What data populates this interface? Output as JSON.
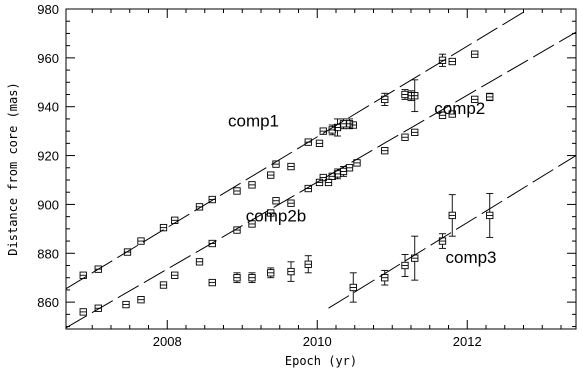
{
  "chart_data": {
    "type": "scatter",
    "title": "",
    "xlabel": "Epoch (yr)",
    "ylabel": "Distance from core (mas)",
    "xlim": [
      2006.65,
      2013.45
    ],
    "ylim": [
      849,
      980
    ],
    "x_ticks_major": [
      2008,
      2010,
      2012
    ],
    "y_ticks_major": [
      860,
      880,
      900,
      920,
      940,
      960,
      980
    ],
    "x_tick_labels": [
      "2008",
      "2010",
      "2012"
    ],
    "y_tick_labels": [
      "860",
      "880",
      "900",
      "920",
      "940",
      "960",
      "980"
    ],
    "grid": false,
    "legend": "none",
    "annotations": [
      {
        "text": "comp1",
        "x": 2009.15,
        "y": 932
      },
      {
        "text": "comp2",
        "x": 2011.9,
        "y": 937
      },
      {
        "text": "comp2b",
        "x": 2009.45,
        "y": 893
      },
      {
        "text": "comp3",
        "x": 2012.05,
        "y": 876
      }
    ],
    "series": [
      {
        "name": "comp1",
        "points": [
          {
            "x": 2006.88,
            "y": 871,
            "err": 0
          },
          {
            "x": 2007.08,
            "y": 873.5,
            "err": 0
          },
          {
            "x": 2007.47,
            "y": 880.5,
            "err": 0
          },
          {
            "x": 2007.65,
            "y": 885,
            "err": 0
          },
          {
            "x": 2007.95,
            "y": 890.5,
            "err": 0
          },
          {
            "x": 2008.1,
            "y": 893.5,
            "err": 0
          },
          {
            "x": 2008.43,
            "y": 899,
            "err": 0
          },
          {
            "x": 2008.6,
            "y": 902,
            "err": 0
          },
          {
            "x": 2008.93,
            "y": 905.5,
            "err": 0
          },
          {
            "x": 2009.13,
            "y": 908,
            "err": 0
          },
          {
            "x": 2009.38,
            "y": 912,
            "err": 0
          },
          {
            "x": 2009.45,
            "y": 916.5,
            "err": 0
          },
          {
            "x": 2009.65,
            "y": 915.5,
            "err": 0
          },
          {
            "x": 2009.88,
            "y": 925.5,
            "err": 0
          },
          {
            "x": 2010.03,
            "y": 925,
            "err": 0
          },
          {
            "x": 2010.08,
            "y": 930,
            "err": 0
          },
          {
            "x": 2010.2,
            "y": 930.5,
            "err": 2
          },
          {
            "x": 2010.27,
            "y": 931.5,
            "err": 3.5
          },
          {
            "x": 2010.35,
            "y": 933,
            "err": 2
          },
          {
            "x": 2010.43,
            "y": 933,
            "err": 2
          },
          {
            "x": 2010.48,
            "y": 932.5,
            "err": 0
          },
          {
            "x": 2010.9,
            "y": 943,
            "err": 2.5
          },
          {
            "x": 2011.17,
            "y": 945,
            "err": 2
          },
          {
            "x": 2011.25,
            "y": 944.5,
            "err": 2
          },
          {
            "x": 2011.3,
            "y": 944.5,
            "err": 6.5
          },
          {
            "x": 2011.67,
            "y": 959,
            "err": 2.5
          },
          {
            "x": 2011.8,
            "y": 958.5,
            "err": 0
          },
          {
            "x": 2012.1,
            "y": 961.5,
            "err": 0
          }
        ],
        "fit": {
          "x": [
            2006.65,
            2012.82
          ],
          "y": [
            865.5,
            980
          ]
        }
      },
      {
        "name": "comp2",
        "points": [
          {
            "x": 2006.88,
            "y": 856,
            "err": 0
          },
          {
            "x": 2007.08,
            "y": 857.5,
            "err": 0
          },
          {
            "x": 2007.45,
            "y": 859,
            "err": 0
          },
          {
            "x": 2007.65,
            "y": 861,
            "err": 0
          },
          {
            "x": 2007.95,
            "y": 867,
            "err": 0
          },
          {
            "x": 2008.1,
            "y": 871,
            "err": 0
          },
          {
            "x": 2008.43,
            "y": 876.5,
            "err": 0
          },
          {
            "x": 2008.6,
            "y": 884,
            "err": 0
          },
          {
            "x": 2008.93,
            "y": 889.5,
            "err": 0
          },
          {
            "x": 2009.13,
            "y": 892,
            "err": 0
          },
          {
            "x": 2009.38,
            "y": 896.5,
            "err": 0
          },
          {
            "x": 2009.45,
            "y": 901.5,
            "err": 0
          },
          {
            "x": 2009.65,
            "y": 900.5,
            "err": 0
          },
          {
            "x": 2009.88,
            "y": 906.5,
            "err": 0
          },
          {
            "x": 2010.03,
            "y": 909,
            "err": 0
          },
          {
            "x": 2010.08,
            "y": 911,
            "err": 0
          },
          {
            "x": 2010.15,
            "y": 909,
            "err": 0
          },
          {
            "x": 2010.2,
            "y": 911.5,
            "err": 0
          },
          {
            "x": 2010.27,
            "y": 912.5,
            "err": 2
          },
          {
            "x": 2010.35,
            "y": 913.5,
            "err": 2
          },
          {
            "x": 2010.43,
            "y": 915,
            "err": 0
          },
          {
            "x": 2010.53,
            "y": 917,
            "err": 0
          },
          {
            "x": 2010.9,
            "y": 922,
            "err": 0
          },
          {
            "x": 2011.17,
            "y": 927.5,
            "err": 0
          },
          {
            "x": 2011.3,
            "y": 929.5,
            "err": 0
          },
          {
            "x": 2011.67,
            "y": 936.5,
            "err": 0
          },
          {
            "x": 2011.8,
            "y": 937,
            "err": 0
          },
          {
            "x": 2012.1,
            "y": 943,
            "err": 0
          },
          {
            "x": 2012.3,
            "y": 944,
            "err": 1.5
          }
        ],
        "fit": {
          "x": [
            2006.65,
            2013.45
          ],
          "y": [
            849.5,
            970.5
          ]
        }
      },
      {
        "name": "comp2b",
        "points": [
          {
            "x": 2008.6,
            "y": 868,
            "err": 0
          },
          {
            "x": 2008.93,
            "y": 870,
            "err": 2
          },
          {
            "x": 2009.13,
            "y": 870,
            "err": 2
          },
          {
            "x": 2009.38,
            "y": 872,
            "err": 2
          },
          {
            "x": 2009.65,
            "y": 872.5,
            "err": 4
          },
          {
            "x": 2009.88,
            "y": 875.5,
            "err": 3.5
          }
        ]
      },
      {
        "name": "comp3",
        "points": [
          {
            "x": 2010.48,
            "y": 866,
            "err": 6
          },
          {
            "x": 2010.9,
            "y": 870,
            "err": 3
          },
          {
            "x": 2011.17,
            "y": 875,
            "err": 4.5
          },
          {
            "x": 2011.3,
            "y": 878,
            "err": 9
          },
          {
            "x": 2011.67,
            "y": 885,
            "err": 3
          },
          {
            "x": 2011.8,
            "y": 895.5,
            "err": 8.5
          },
          {
            "x": 2012.3,
            "y": 895.5,
            "err": 9
          }
        ],
        "fit": {
          "x": [
            2010.15,
            2013.45
          ],
          "y": [
            857.5,
            920
          ]
        }
      }
    ]
  }
}
